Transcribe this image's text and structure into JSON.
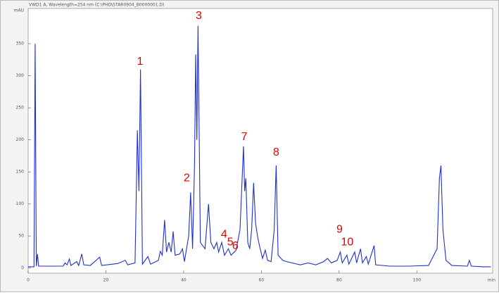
{
  "chart_data": {
    "type": "line",
    "title": "VWD1 A, Wavelength=254 nm (C:\\PHD\\STAR0904_B0000001.D)",
    "y_label": "mAU",
    "x_label": "min",
    "color": "#1f2fd0",
    "xlim": [
      0,
      119.5
    ],
    "ylim": [
      -8,
      405
    ],
    "xticks": [
      0,
      20,
      40,
      60,
      80,
      100
    ],
    "yticks": [
      0,
      50,
      100,
      150,
      200,
      250,
      300,
      350
    ],
    "x": [
      0,
      1.5,
      1.8,
      2.1,
      2.4,
      2.7,
      9,
      9.5,
      10,
      10.6,
      11,
      12.5,
      13,
      13.8,
      14.3,
      16,
      18.4,
      18.9,
      23,
      25,
      25.6,
      27.5,
      28.1,
      28.5,
      28.9,
      29.4,
      30.8,
      31.5,
      33.5,
      34,
      34.5,
      35.1,
      35.6,
      36.2,
      36.8,
      37.3,
      37.8,
      39,
      39.7,
      40.2,
      41.3,
      41.8,
      42.3,
      42.8,
      43.1,
      43.4,
      43.7,
      44.3,
      45.5,
      46.4,
      47,
      47.8,
      48.5,
      49,
      49.8,
      50.5,
      51.5,
      52.2,
      53.5,
      54.5,
      55.4,
      55.7,
      56,
      56.5,
      57,
      57.5,
      58,
      58.5,
      59,
      59.5,
      60.3,
      61,
      61.6,
      62.5,
      63.3,
      63.8,
      64.3,
      65.5,
      66.5,
      70,
      72,
      74,
      76,
      77,
      78,
      79.5,
      80.3,
      80.8,
      82,
      82.5,
      84,
      84.5,
      85.5,
      86,
      87,
      87.5,
      89,
      89.4,
      93,
      98,
      103,
      105.2,
      105.8,
      106.2,
      106.7,
      107.5,
      109,
      113,
      113.5,
      114,
      117,
      119
    ],
    "values": [
      2,
      2,
      350,
      3,
      22,
      3,
      3,
      8,
      5,
      14,
      4,
      10,
      4,
      22,
      5,
      4,
      17,
      4,
      7,
      12,
      5,
      8,
      215,
      120,
      310,
      6,
      18,
      6,
      12,
      26,
      20,
      75,
      25,
      40,
      25,
      57,
      20,
      22,
      30,
      10,
      50,
      118,
      30,
      160,
      333,
      200,
      378,
      40,
      30,
      100,
      40,
      30,
      40,
      25,
      40,
      20,
      30,
      20,
      28,
      60,
      190,
      120,
      140,
      40,
      30,
      60,
      133,
      70,
      50,
      35,
      15,
      28,
      12,
      10,
      60,
      160,
      20,
      12,
      10,
      5,
      8,
      5,
      10,
      15,
      8,
      12,
      25,
      8,
      20,
      6,
      25,
      8,
      30,
      8,
      18,
      6,
      35,
      5,
      3,
      3,
      4,
      30,
      140,
      160,
      60,
      12,
      4,
      3,
      12,
      3,
      2,
      2
    ],
    "annotations": [
      {
        "text": "1",
        "x": 28.8,
        "y": 322
      },
      {
        "text": "2",
        "x": 40.8,
        "y": 140
      },
      {
        "text": "3",
        "x": 43.9,
        "y": 393
      },
      {
        "text": "4",
        "x": 50.4,
        "y": 52
      },
      {
        "text": "5",
        "x": 52.0,
        "y": 40
      },
      {
        "text": "6",
        "x": 53.3,
        "y": 34
      },
      {
        "text": "7",
        "x": 55.6,
        "y": 204
      },
      {
        "text": "8",
        "x": 63.8,
        "y": 180
      },
      {
        "text": "9",
        "x": 80.1,
        "y": 60
      },
      {
        "text": "10",
        "x": 82.1,
        "y": 40
      }
    ]
  }
}
